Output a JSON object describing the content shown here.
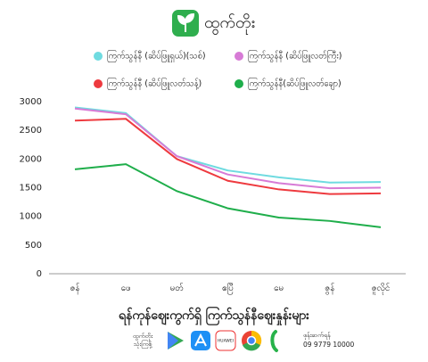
{
  "header": {
    "brand": "ထွက်တိုး"
  },
  "chart_data": {
    "type": "line",
    "title": "ရန်ကုန်ဈေးကွက်ရှိ ကြက်သွန်နီဈေးနှုန်းများ",
    "categories": [
      "ဇန်",
      "ဖေ",
      "မတ်",
      "ဧပြီ",
      "မေ",
      "ဇွန်",
      "ဇူလိုင်"
    ],
    "series": [
      {
        "name": "ကြက်သွန်နီ (ဆိပ်ဖြူရှယ်)(သစ်)",
        "color": "#6fdbe0",
        "values": [
          2900,
          2800,
          2050,
          1800,
          1680,
          1590,
          1600
        ]
      },
      {
        "name": "ကြက်သွန်နီ (ဆိပ်ဖြူလတ်ကြီး)",
        "color": "#d77bd6",
        "values": [
          2880,
          2780,
          2050,
          1730,
          1580,
          1490,
          1500
        ]
      },
      {
        "name": "ကြက်သွန်နီ (ဆိပ်ဖြူလတ်သန့်)",
        "color": "#ee3a3f",
        "values": [
          2670,
          2700,
          2000,
          1620,
          1470,
          1390,
          1400
        ]
      },
      {
        "name": "ကြက်သွန်နီ(ဆိပ်ဖြူလတ်ချော)",
        "color": "#1fae4b",
        "values": [
          1820,
          1910,
          1440,
          1140,
          980,
          920,
          810
        ]
      }
    ],
    "ylim": [
      0,
      3000
    ],
    "yticks": [
      0,
      500,
      1000,
      1500,
      2000,
      2500,
      3000
    ],
    "grid": false
  },
  "footer": {
    "slogan": [
      "ထွက်တိုး",
      "သုံးကြစို့"
    ],
    "huawei": "HUAWEI",
    "contact_label": "ဖုန်းဆက်ရန်",
    "phone": "09 9779 10000"
  }
}
